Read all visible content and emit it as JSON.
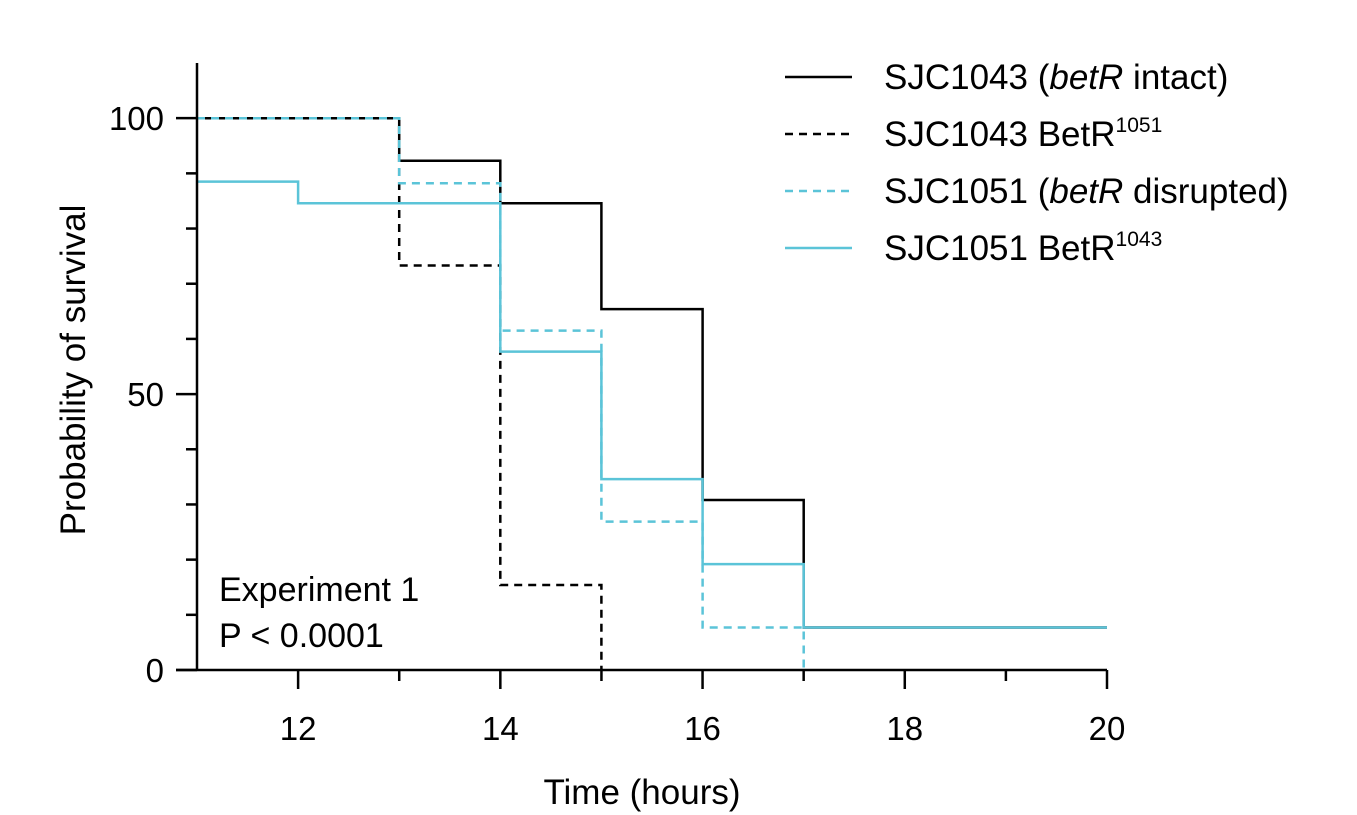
{
  "chart_data": {
    "type": "line",
    "subtype": "kaplan-meier step",
    "title": "",
    "xlabel": "Time (hours)",
    "ylabel": "Probability of survival",
    "xlim": [
      11,
      20
    ],
    "ylim": [
      0,
      110
    ],
    "x_ticks": [
      12,
      14,
      16,
      18,
      20
    ],
    "x_tick_labels": [
      "12",
      "14",
      "16",
      "18",
      "20"
    ],
    "y_ticks": [
      0,
      50,
      100
    ],
    "y_tick_labels": [
      "0",
      "50",
      "100"
    ],
    "x_minor_ticks": [
      13,
      15,
      17,
      19
    ],
    "y_minor_ticks": [
      10,
      20,
      30,
      40,
      60,
      70,
      80,
      90
    ],
    "grid": false,
    "legend_position": "top-right",
    "series": [
      {
        "name": "SJC1043 (betR intact)",
        "legend_parts": [
          {
            "text": "SJC1043 (",
            "italic": false,
            "sup": false
          },
          {
            "text": "betR",
            "italic": true,
            "sup": false
          },
          {
            "text": " intact)",
            "italic": false,
            "sup": false
          }
        ],
        "color": "#000000",
        "dashed": false,
        "x": [
          11,
          13,
          14,
          15,
          16,
          17,
          20
        ],
        "y": [
          100,
          92.3,
          84.6,
          65.4,
          30.8,
          7.7,
          7.7
        ]
      },
      {
        "name": "SJC1043 BetR1051",
        "legend_parts": [
          {
            "text": "SJC1043 BetR",
            "italic": false,
            "sup": false
          },
          {
            "text": "1051",
            "italic": false,
            "sup": true
          }
        ],
        "color": "#000000",
        "dashed": true,
        "x": [
          11,
          13,
          14,
          15
        ],
        "y": [
          100,
          73.3,
          15.4,
          0
        ]
      },
      {
        "name": "SJC1051 (betR disrupted)",
        "legend_parts": [
          {
            "text": "SJC1051 (",
            "italic": false,
            "sup": false
          },
          {
            "text": "betR",
            "italic": true,
            "sup": false
          },
          {
            "text": " disrupted)",
            "italic": false,
            "sup": false
          }
        ],
        "color": "#5bc4d8",
        "dashed": true,
        "x": [
          11,
          13,
          14,
          15,
          16,
          17
        ],
        "y": [
          100,
          88.2,
          61.5,
          26.9,
          7.7,
          0
        ]
      },
      {
        "name": "SJC1051 BetR1043",
        "legend_parts": [
          {
            "text": "SJC1051 BetR",
            "italic": false,
            "sup": false
          },
          {
            "text": "1043",
            "italic": false,
            "sup": true
          }
        ],
        "color": "#5bc4d8",
        "dashed": false,
        "x": [
          11,
          12,
          14,
          15,
          16,
          17,
          20
        ],
        "y": [
          88.5,
          84.6,
          57.7,
          34.6,
          19.2,
          7.7,
          7.7
        ]
      }
    ],
    "annotations": [
      "Experiment 1",
      "P < 0.0001"
    ]
  }
}
